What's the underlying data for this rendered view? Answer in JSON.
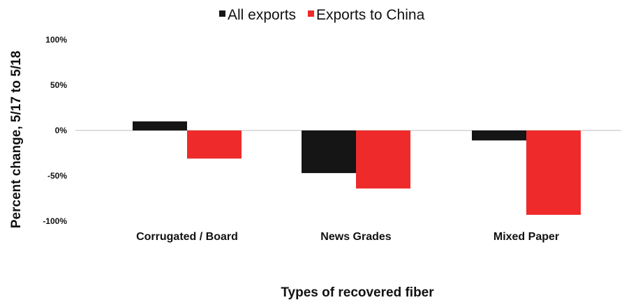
{
  "chart_data": {
    "type": "bar",
    "title": "",
    "xlabel": "Types of recovered fiber",
    "ylabel": "Percent change, 5/17 to 5/18",
    "ylim": [
      -100,
      100
    ],
    "yticks": [
      100,
      50,
      0,
      -50,
      -100
    ],
    "ytick_labels": [
      "100%",
      "50%",
      "0%",
      "-50%",
      "-100%"
    ],
    "categories": [
      "Corrugated / Board",
      "News Grades",
      "Mixed Paper"
    ],
    "series": [
      {
        "name": "All exports",
        "color": "#151515",
        "values": [
          10,
          -47,
          -11
        ]
      },
      {
        "name": "Exports to China",
        "color": "#ee2a2a",
        "values": [
          -31,
          -64,
          -93
        ]
      }
    ],
    "legend_position": "top-center",
    "grid": false
  }
}
